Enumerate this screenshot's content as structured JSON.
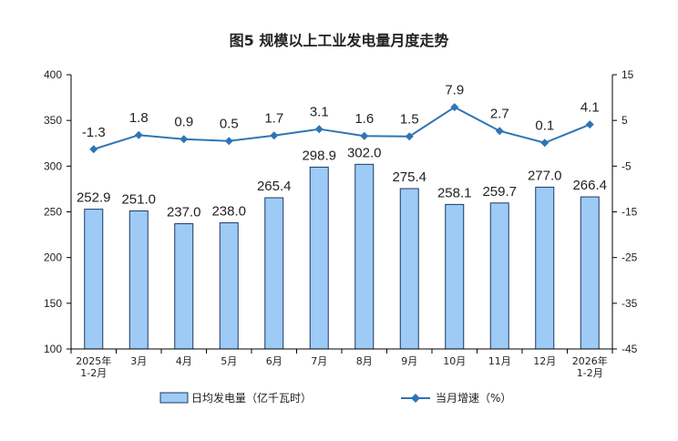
{
  "chart_data": {
    "type": "bar",
    "title": "图5  规模以上工业发电量月度走势",
    "categories": [
      [
        "2025年",
        "1-2月"
      ],
      [
        "3月"
      ],
      [
        "4月"
      ],
      [
        "5月"
      ],
      [
        "6月"
      ],
      [
        "7月"
      ],
      [
        "8月"
      ],
      [
        "9月"
      ],
      [
        "10月"
      ],
      [
        "11月"
      ],
      [
        "12月"
      ],
      [
        "2026年",
        "1-2月"
      ]
    ],
    "series": [
      {
        "name": "日均发电量（亿千瓦时）",
        "type": "bar",
        "axis": "left",
        "values": [
          252.9,
          251.0,
          237.0,
          238.0,
          265.4,
          298.9,
          302.0,
          275.4,
          258.1,
          259.7,
          277.0,
          266.4
        ],
        "labels": [
          "252.9",
          "251.0",
          "237.0",
          "238.0",
          "265.4",
          "298.9",
          "302.0",
          "275.4",
          "258.1",
          "259.7",
          "277.0",
          "266.4"
        ]
      },
      {
        "name": "当月增速（%）",
        "type": "line",
        "axis": "right",
        "values": [
          -1.3,
          1.8,
          0.9,
          0.5,
          1.7,
          3.1,
          1.6,
          1.5,
          7.9,
          2.7,
          0.1,
          4.1
        ],
        "labels": [
          "-1.3",
          "1.8",
          "0.9",
          "0.5",
          "1.7",
          "3.1",
          "1.6",
          "1.5",
          "7.9",
          "2.7",
          "0.1",
          "4.1"
        ]
      }
    ],
    "y_left": {
      "min": 100,
      "max": 400,
      "ticks": [
        "100",
        "150",
        "200",
        "250",
        "300",
        "350",
        "400"
      ]
    },
    "y_right": {
      "min": -45,
      "max": 15,
      "ticks": [
        "-45",
        "-35",
        "-25",
        "-15",
        "-5",
        "5",
        "15"
      ]
    },
    "grid": false,
    "legend_position": "bottom",
    "colors": {
      "bar_fill": "#9DCBF5",
      "bar_stroke": "#1F3864",
      "line": "#2E75B6",
      "axis": "#000000"
    }
  }
}
